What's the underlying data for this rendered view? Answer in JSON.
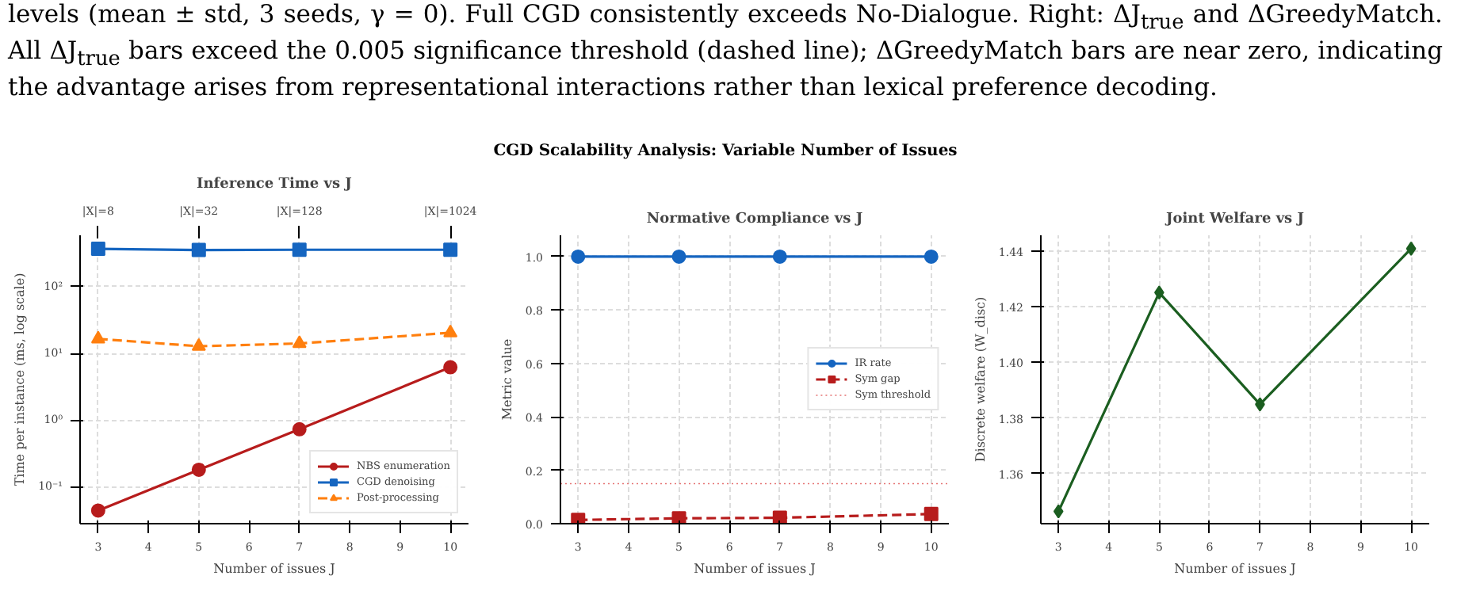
{
  "chart_data": [
    {
      "type": "other",
      "title": "CGD Scalability Analysis: Variable Number of Issues",
      "annotations": [
        "levels (mean ± std, 3 seeds, γ = 0).  Full CGD consistently exceeds No-Dialogue.  Right: ΔJ$_{true}$ and ΔGreedyMatch. All ΔJ$_{true}$ bars exceed the 0.005 significance threshold (dashed line); ΔGreedyMatch bars are near zero, indicating the advantage arises from representational interactions rather than lexical preference decoding."
      ]
    },
    {
      "type": "line",
      "title": "Inference Time vs J",
      "xlabel": "Number of issues J",
      "ylabel": "Time per instance (ms, log scale)",
      "log": "y",
      "x": [
        3,
        5,
        7,
        10
      ],
      "xlim": [
        2.64,
        10.36
      ],
      "xticks": [
        3,
        4,
        5,
        6,
        7,
        8,
        9,
        10
      ],
      "annotations": [
        {
          "text": "|X|=8",
          "x": 3
        },
        {
          "text": "|X|=32",
          "x": 5
        },
        {
          "text": "|X|=128",
          "x": 7
        },
        {
          "text": "|X|=1024",
          "x": 10
        }
      ],
      "ylim": [
        0.028,
        590
      ],
      "yticks": [
        {
          "value": 0.1,
          "label": "10⁻¹"
        },
        {
          "value": 1,
          "label": "10⁰"
        },
        {
          "value": 10,
          "label": "10¹"
        },
        {
          "value": 100,
          "label": "10²"
        }
      ],
      "grid": true,
      "legend": "bottom right",
      "series": [
        {
          "name": "NBS enumeration",
          "color": "#b71c1c",
          "values": [
            0.044,
            0.18,
            0.73,
            6.2
          ],
          "marker": "circle",
          "line_style": "solid"
        },
        {
          "name": "CGD denoising",
          "color": "#1565c0",
          "values": [
            370,
            355,
            358,
            358
          ],
          "marker": "square",
          "line_style": "solid"
        },
        {
          "name": "Post-processing",
          "color": "#ff7f0e",
          "values": [
            16.5,
            12.8,
            14.1,
            20.4
          ],
          "marker": "triangle",
          "line_style": "dashed"
        }
      ]
    },
    {
      "type": "line",
      "title": "Normative Compliance vs J",
      "xlabel": "Number of issues J",
      "ylabel": "Metric value",
      "x": [
        3,
        5,
        7,
        10
      ],
      "xlim": [
        2.65,
        10.35
      ],
      "xticks": [
        3,
        4,
        5,
        6,
        7,
        8,
        9,
        10
      ],
      "ylim": [
        0,
        1.08
      ],
      "yticks": [
        {
          "value": 0,
          "label": "0.0"
        },
        {
          "value": 0.2,
          "label": "0.2"
        },
        {
          "value": 0.4,
          "label": "0.4"
        },
        {
          "value": 0.6,
          "label": "0.6"
        },
        {
          "value": 0.8,
          "label": "0.8"
        },
        {
          "value": 1,
          "label": "1.0"
        }
      ],
      "grid": true,
      "legend": "right",
      "series": [
        {
          "name": "IR rate",
          "color": "#1565c0",
          "values": [
            1.0,
            1.0,
            1.0,
            1.0
          ],
          "marker": "circle",
          "line_style": "solid"
        },
        {
          "name": "Sym gap",
          "color": "#b71c1c",
          "values": [
            0.014,
            0.02,
            0.022,
            0.036
          ],
          "marker": "square",
          "line_style": "dashed"
        }
      ],
      "ref_lines": [
        {
          "axis": "y",
          "value": 0.15,
          "label": "Sym threshold",
          "color": "#e57373",
          "line_style": "dotted"
        }
      ]
    },
    {
      "type": "line",
      "title": "Joint Welfare vs J",
      "xlabel": "Number of issues J",
      "ylabel": "Discrete welfare (W_disc)",
      "x": [
        3,
        5,
        7,
        10
      ],
      "xlim": [
        2.65,
        10.36
      ],
      "xticks": [
        3,
        4,
        5,
        6,
        7,
        8,
        9,
        10
      ],
      "ylim": [
        1.342,
        1.4457
      ],
      "yticks": [
        {
          "value": 1.36,
          "label": "1.36"
        },
        {
          "value": 1.38,
          "label": "1.38"
        },
        {
          "value": 1.4,
          "label": "1.40"
        },
        {
          "value": 1.42,
          "label": "1.42"
        },
        {
          "value": 1.44,
          "label": "1.44"
        }
      ],
      "grid": true,
      "series": [
        {
          "color": "#1b5e20",
          "values": [
            1.3464,
            1.4251,
            1.3849,
            1.4409
          ],
          "marker": "diamond",
          "line_style": "solid"
        }
      ]
    }
  ]
}
